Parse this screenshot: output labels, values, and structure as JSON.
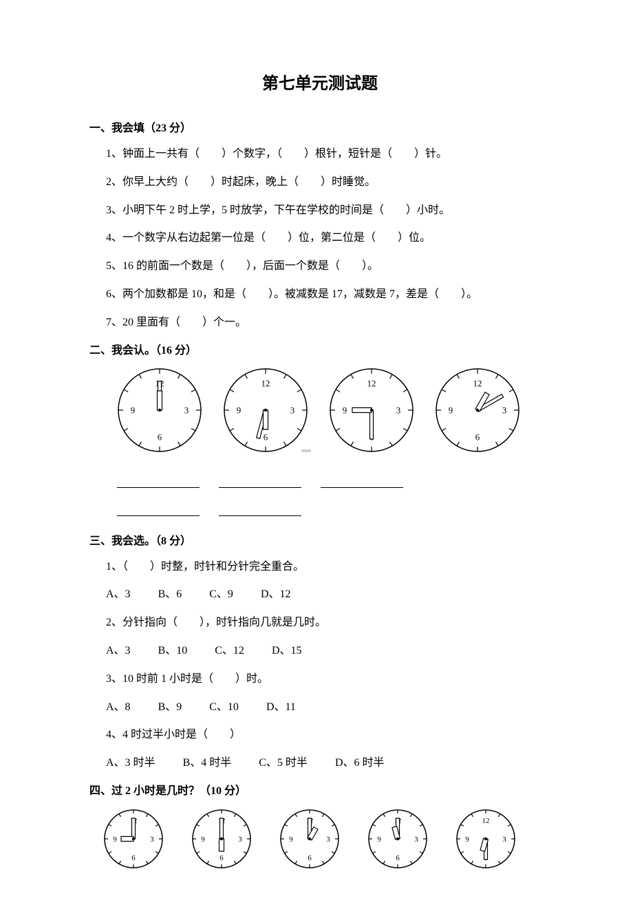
{
  "title": "第七单元测试题",
  "sections": {
    "s1": {
      "header": "一、我会填（23 分）",
      "q1": "1、钟面上一共有（　　）个数字，（　　）根针，短针是（　　）针。",
      "q2": "2、你早上大约（　　）时起床，晚上（　　）时睡觉。",
      "q3": "3、小明下午 2 时上学，5 时放学，下午在学校的时间是（　　）小时。",
      "q4": "4、一个数字从右边起第一位是（　　）位，第二位是（　　）位。",
      "q5": "5、16 的前面一个数是（　　），后面一个数是（　　）。",
      "q6": "6、两个加数都是 10，和是（　　）。被减数是 17，减数是 7，差是（　　）。",
      "q7": "7、20 里面有（　　）个一。"
    },
    "s2": {
      "header": "二、我会认。（16 分）",
      "clocks": [
        {
          "radius": 60,
          "hour_angle": 0,
          "min_angle": 0,
          "hour_len": 28,
          "min_len": 42
        },
        {
          "radius": 60,
          "hour_angle": 180,
          "min_angle": 195,
          "hour_len": 28,
          "min_len": 42
        },
        {
          "radius": 60,
          "hour_angle": 270,
          "min_angle": 180,
          "hour_len": 28,
          "min_len": 42
        },
        {
          "radius": 60,
          "hour_angle": 30,
          "min_angle": 60,
          "hour_len": 28,
          "min_len": 42
        }
      ],
      "clock_style": {
        "stroke": "#000000",
        "fill": "#ffffff",
        "tick_len": 7,
        "num_offset": 14,
        "label_fontsize": 13
      }
    },
    "s3": {
      "header": "三、我会选。（8 分）",
      "q1": "1、（　　）时整，时针和分针完全重合。",
      "opt1": {
        "A": "A、3",
        "B": "B、6",
        "C": "C、9",
        "D": "D、12"
      },
      "q2": "2、分针指向（　　），时针指向几就是几时。",
      "opt2": {
        "A": "A、3",
        "B": "B、10",
        "C": "C、12",
        "D": "D、15"
      },
      "q3": "3、10 时前 1 小时是（　　）时。",
      "opt3": {
        "A": "A、8",
        "B": "B、9",
        "C": "C、10",
        "D": "D、11"
      },
      "q4": "4、4 时过半小时是（　　）",
      "opt4": {
        "A": "A、3 时半",
        "B": "B、4 时半",
        "C": "C、5 时半",
        "D": "D、6 时半"
      }
    },
    "s4": {
      "header": "四、过 2 小时是几时？（10 分）",
      "clocks": [
        {
          "radius": 42,
          "hour_angle": 270,
          "min_angle": 0,
          "hour_len": 18,
          "min_len": 30
        },
        {
          "radius": 42,
          "hour_angle": 180,
          "min_angle": 0,
          "hour_len": 18,
          "min_len": 30
        },
        {
          "radius": 42,
          "hour_angle": 30,
          "min_angle": 0,
          "hour_len": 18,
          "min_len": 30
        },
        {
          "radius": 42,
          "hour_angle": 345,
          "min_angle": 0,
          "hour_len": 18,
          "min_len": 30
        },
        {
          "radius": 42,
          "hour_angle": 195,
          "min_angle": 180,
          "hour_len": 18,
          "min_len": 30
        }
      ],
      "clock_style": {
        "stroke": "#000000",
        "fill": "#ffffff",
        "tick_len": 5,
        "num_offset": 10,
        "label_fontsize": 11
      }
    }
  },
  "clock_labels": {
    "12": "12",
    "3": "3",
    "6": "6",
    "9": "9"
  }
}
